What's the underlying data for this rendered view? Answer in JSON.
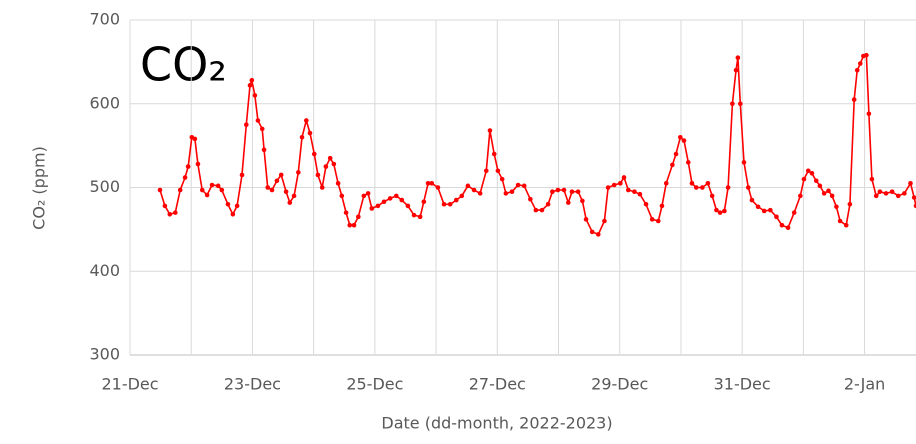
{
  "chart_data": {
    "type": "line",
    "title": "CO₂",
    "xlabel": "Date (dd-month, 2022-2023)",
    "ylabel": "CO₂ (ppm)",
    "color": "#ff0000",
    "grid": true,
    "xlim": [
      0,
      12.84
    ],
    "ylim": [
      300,
      700
    ],
    "yticks": [
      300,
      400,
      500,
      600,
      700
    ],
    "xticks": [
      {
        "value": 0,
        "label": "21-Dec"
      },
      {
        "value": 2,
        "label": "23-Dec"
      },
      {
        "value": 4,
        "label": "25-Dec"
      },
      {
        "value": 6,
        "label": "27-Dec"
      },
      {
        "value": 8,
        "label": "29-Dec"
      },
      {
        "value": 10,
        "label": "31-Dec"
      },
      {
        "value": 12,
        "label": "2-Jan"
      }
    ],
    "xminor": [
      1,
      3,
      5,
      7,
      9,
      11
    ],
    "x": [
      0.49,
      0.57,
      0.65,
      0.74,
      0.82,
      0.9,
      0.95,
      1.01,
      1.06,
      1.11,
      1.18,
      1.26,
      1.34,
      1.44,
      1.5,
      1.6,
      1.68,
      1.75,
      1.83,
      1.9,
      1.96,
      1.99,
      2.04,
      2.09,
      2.16,
      2.19,
      2.25,
      2.32,
      2.4,
      2.47,
      2.55,
      2.61,
      2.68,
      2.75,
      2.81,
      2.88,
      2.94,
      3.01,
      3.07,
      3.14,
      3.2,
      3.27,
      3.33,
      3.4,
      3.46,
      3.53,
      3.59,
      3.66,
      3.73,
      3.82,
      3.89,
      3.95,
      4.05,
      4.15,
      4.25,
      4.35,
      4.44,
      4.54,
      4.64,
      4.74,
      4.8,
      4.87,
      4.93,
      5.03,
      5.13,
      5.23,
      5.33,
      5.42,
      5.52,
      5.62,
      5.72,
      5.82,
      5.88,
      5.95,
      6.01,
      6.08,
      6.14,
      6.24,
      6.34,
      6.44,
      6.54,
      6.63,
      6.73,
      6.83,
      6.9,
      6.99,
      7.09,
      7.16,
      7.22,
      7.32,
      7.39,
      7.45,
      7.55,
      7.65,
      7.75,
      7.81,
      7.91,
      8.01,
      8.07,
      8.14,
      8.24,
      8.33,
      8.43,
      8.53,
      8.63,
      8.69,
      8.76,
      8.86,
      8.92,
      8.99,
      9.05,
      9.12,
      9.18,
      9.25,
      9.35,
      9.44,
      9.51,
      9.58,
      9.64,
      9.71,
      9.77,
      9.84,
      9.9,
      9.93,
      9.97,
      10.03,
      10.1,
      10.16,
      10.26,
      10.36,
      10.46,
      10.56,
      10.65,
      10.75,
      10.85,
      10.95,
      11.01,
      11.08,
      11.14,
      11.21,
      11.27,
      11.34,
      11.41,
      11.47,
      11.54,
      11.6,
      11.7,
      11.76,
      11.83,
      11.88,
      11.93,
      11.98,
      12.03,
      12.07,
      12.12,
      12.19,
      12.25,
      12.35,
      12.45,
      12.55,
      12.65,
      12.75,
      12.81,
      12.84
    ],
    "values": [
      497,
      478,
      468,
      470,
      497,
      512,
      525,
      560,
      558,
      528,
      497,
      491,
      503,
      502,
      497,
      480,
      468,
      478,
      515,
      575,
      622,
      628,
      610,
      580,
      570,
      545,
      500,
      497,
      508,
      515,
      495,
      482,
      490,
      518,
      560,
      580,
      565,
      540,
      515,
      500,
      525,
      535,
      528,
      505,
      490,
      470,
      455,
      455,
      465,
      490,
      493,
      475,
      478,
      483,
      487,
      490,
      485,
      478,
      467,
      465,
      483,
      505,
      505,
      500,
      480,
      480,
      485,
      490,
      502,
      497,
      493,
      520,
      568,
      540,
      520,
      510,
      493,
      495,
      503,
      502,
      486,
      473,
      473,
      480,
      495,
      497,
      497,
      482,
      495,
      495,
      484,
      462,
      447,
      444,
      460,
      500,
      503,
      505,
      512,
      497,
      495,
      492,
      480,
      462,
      460,
      478,
      505,
      527,
      540,
      560,
      556,
      530,
      505,
      500,
      500,
      505,
      490,
      473,
      470,
      472,
      500,
      600,
      640,
      655,
      600,
      530,
      500,
      485,
      477,
      472,
      473,
      465,
      455,
      452,
      470,
      490,
      510,
      520,
      517,
      508,
      502,
      493,
      496,
      490,
      477,
      460,
      455,
      480,
      605,
      640,
      648,
      657,
      658,
      588,
      510,
      490,
      495,
      493,
      495,
      490,
      493,
      505,
      488,
      478
    ]
  }
}
